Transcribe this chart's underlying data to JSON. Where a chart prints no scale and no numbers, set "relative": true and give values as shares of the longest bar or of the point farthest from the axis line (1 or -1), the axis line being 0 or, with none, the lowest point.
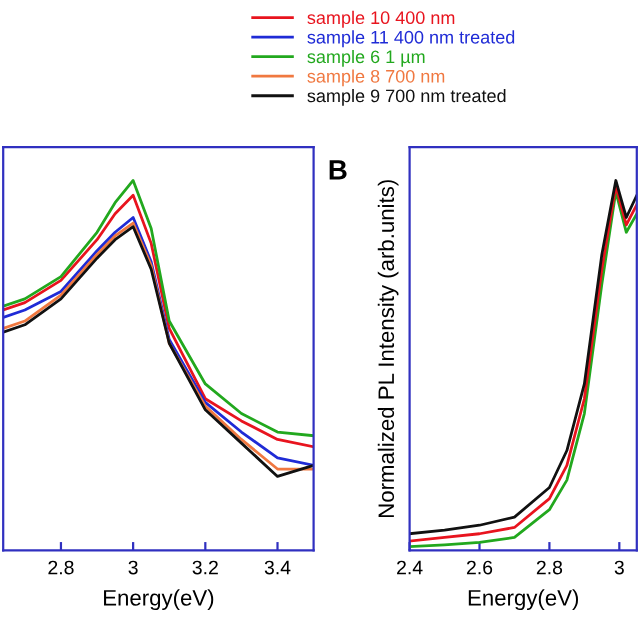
{
  "chart_data": [
    {
      "type": "line",
      "relative": true,
      "xlabel": "Energy(eV)",
      "xlim": [
        2.64,
        3.5
      ],
      "xticks": [
        2.8,
        3,
        3.2,
        3.4
      ],
      "tick_labels": "x",
      "legend": "top",
      "x": [
        2.64,
        2.7,
        2.8,
        2.9,
        2.95,
        3.0,
        3.05,
        3.1,
        3.2,
        3.3,
        3.4,
        3.5
      ],
      "series": [
        {
          "name": "sample 10 400 nm",
          "color": "#e8141e",
          "values": [
            0.65,
            0.67,
            0.73,
            0.84,
            0.91,
            0.96,
            0.83,
            0.6,
            0.41,
            0.35,
            0.3,
            0.28
          ]
        },
        {
          "name": "sample 11 400 nm treated",
          "color": "#1f2bd6",
          "values": [
            0.63,
            0.65,
            0.7,
            0.81,
            0.86,
            0.9,
            0.78,
            0.57,
            0.4,
            0.32,
            0.25,
            0.23
          ]
        },
        {
          "name": "sample 6 1 µm",
          "color": "#22a81e",
          "values": [
            0.66,
            0.68,
            0.74,
            0.86,
            0.94,
            1,
            0.87,
            0.62,
            0.45,
            0.37,
            0.32,
            0.31
          ]
        },
        {
          "name": "sample 8 700 nm",
          "color": "#f07840",
          "values": [
            0.6,
            0.62,
            0.69,
            0.8,
            0.85,
            0.885,
            0.77,
            0.56,
            0.39,
            0.3,
            0.22,
            0.22
          ]
        },
        {
          "name": "sample 9 700 nm treated",
          "color": "#111111",
          "values": [
            0.59,
            0.61,
            0.68,
            0.79,
            0.84,
            0.875,
            0.76,
            0.56,
            0.38,
            0.29,
            0.2,
            0.23
          ]
        }
      ]
    },
    {
      "type": "line",
      "relative": true,
      "title": "B",
      "xlabel": "Energy(eV)",
      "ylabel": "Normalized PL Intensity (arb.units)",
      "xlim": [
        2.4,
        3.05
      ],
      "xticks": [
        2.4,
        2.6,
        2.8,
        3
      ],
      "tick_labels": "x",
      "x": [
        2.4,
        2.5,
        2.6,
        2.7,
        2.8,
        2.85,
        2.9,
        2.95,
        2.99,
        3.02,
        3.05
      ],
      "series": [
        {
          "color": "#22a81e",
          "values": [
            0.01,
            0.015,
            0.022,
            0.035,
            0.11,
            0.19,
            0.37,
            0.72,
            0.97,
            0.86,
            0.91
          ]
        },
        {
          "color": "#e8141e",
          "values": [
            0.025,
            0.035,
            0.045,
            0.062,
            0.14,
            0.23,
            0.41,
            0.76,
            0.985,
            0.88,
            0.935
          ]
        },
        {
          "color": "#111111",
          "values": [
            0.045,
            0.055,
            0.068,
            0.09,
            0.17,
            0.27,
            0.45,
            0.8,
            1,
            0.9,
            0.96
          ]
        }
      ]
    }
  ]
}
